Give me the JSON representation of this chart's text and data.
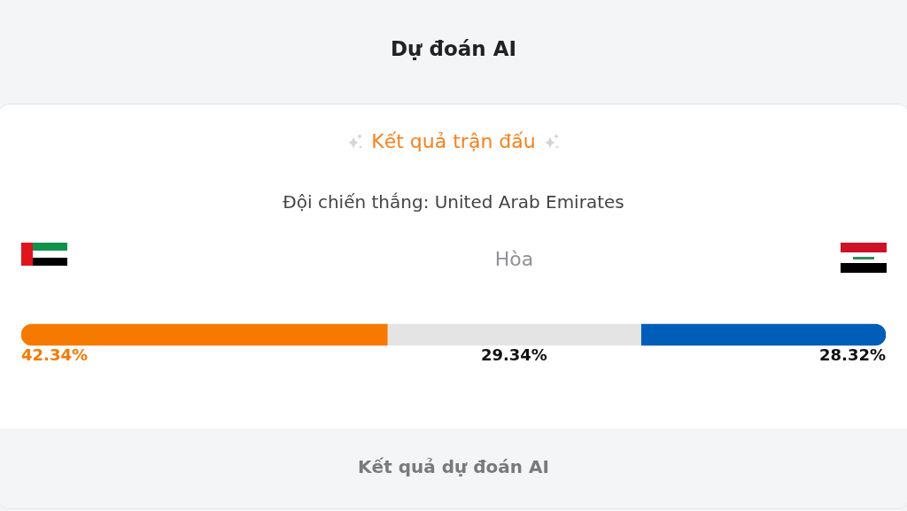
{
  "chart_data": {
    "type": "bar",
    "title": "Dự đoán AI",
    "subtitle": "Kết quả trận đấu",
    "orientation": "horizontal",
    "stacked": true,
    "tick_labels": false,
    "categories": [
      null
    ],
    "series": [
      {
        "color": "#f77a00",
        "values": [
          42.34
        ],
        "value_labels": [
          "42.34%"
        ]
      },
      {
        "name": "Hòa",
        "color": "#e4e4e4",
        "values": [
          29.34
        ],
        "value_labels": [
          "29.34%"
        ]
      },
      {
        "color": "#005eb8",
        "values": [
          28.32
        ],
        "value_labels": [
          "28.32%"
        ]
      }
    ],
    "annotations": [
      "Đội chiến thắng: United Arab Emirates",
      "Kết quả dự đoán AI"
    ]
  }
}
